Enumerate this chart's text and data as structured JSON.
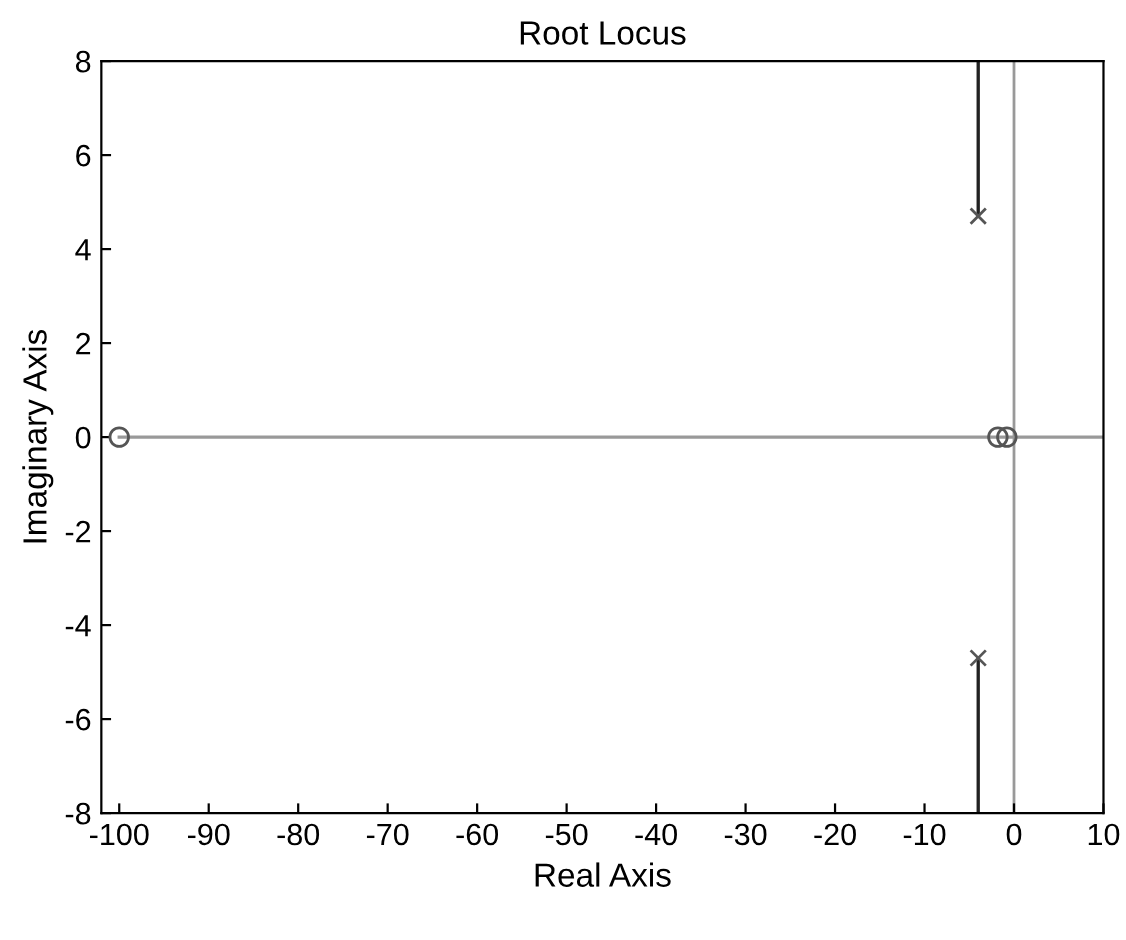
{
  "chart_data": {
    "type": "line",
    "title": "Root Locus",
    "xlabel": "Real Axis",
    "ylabel": "Imaginary Axis",
    "series": [
      {
        "color": "#999999",
        "x": [
          -100,
          10
        ],
        "values": [
          0,
          0
        ],
        "marker": "none"
      },
      {
        "color": "#222222",
        "x": [
          -4,
          -4
        ],
        "values": [
          4.7,
          8
        ],
        "marker": "none"
      },
      {
        "color": "#222222",
        "x": [
          -4,
          -4
        ],
        "values": [
          -4.7,
          -8
        ],
        "marker": "none"
      },
      {
        "type": "scatter",
        "color": "#555555",
        "x": [
          -4,
          -4
        ],
        "values": [
          4.7,
          -4.7
        ],
        "marker": "cross"
      },
      {
        "type": "scatter",
        "color": "#555555",
        "x": [
          -100,
          -1.8,
          -0.8
        ],
        "values": [
          0,
          0,
          0
        ],
        "marker": "circle"
      }
    ],
    "ref_lines": [
      {
        "axis": "x",
        "value": 0,
        "color": "#999999"
      }
    ],
    "xlim": [
      -102,
      10
    ],
    "xticks": [
      -100,
      -90,
      -80,
      -70,
      -60,
      -50,
      -40,
      -30,
      -20,
      -10,
      0,
      10
    ],
    "ylim": [
      -8,
      8
    ],
    "yticks": [
      -8,
      -6,
      -4,
      -2,
      0,
      2,
      4,
      6,
      8
    ],
    "grid": false,
    "legend": false
  }
}
